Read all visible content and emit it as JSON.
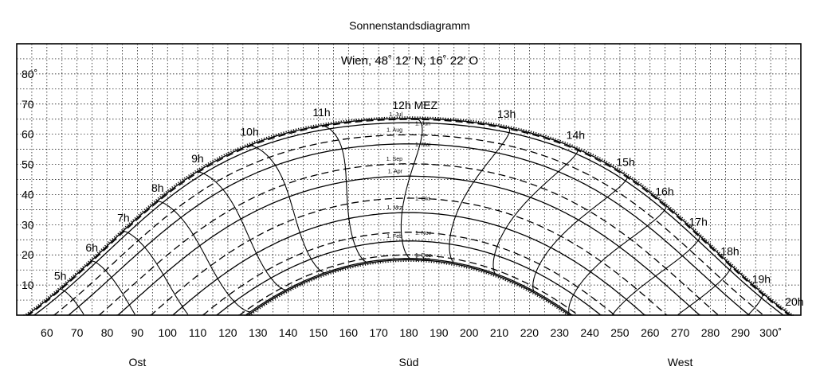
{
  "chart_data": {
    "type": "line",
    "title": "Sonnenstandsdiagramm",
    "subtitle": "Wien, 48˚ 12′ N, 16˚ 22′ O",
    "location": {
      "latitude_deg": 48.2,
      "longitude_deg": 16.367
    },
    "xlim": [
      50,
      310
    ],
    "ylim": [
      0,
      90
    ],
    "x_ticks": [
      {
        "v": 60,
        "t": "60"
      },
      {
        "v": 70,
        "t": "70"
      },
      {
        "v": 80,
        "t": "80"
      },
      {
        "v": 90,
        "t": "90"
      },
      {
        "v": 100,
        "t": "100"
      },
      {
        "v": 110,
        "t": "110"
      },
      {
        "v": 120,
        "t": "120"
      },
      {
        "v": 130,
        "t": "130"
      },
      {
        "v": 140,
        "t": "140"
      },
      {
        "v": 150,
        "t": "150"
      },
      {
        "v": 160,
        "t": "160"
      },
      {
        "v": 170,
        "t": "170"
      },
      {
        "v": 180,
        "t": "180"
      },
      {
        "v": 190,
        "t": "190"
      },
      {
        "v": 200,
        "t": "200"
      },
      {
        "v": 210,
        "t": "210"
      },
      {
        "v": 220,
        "t": "220"
      },
      {
        "v": 230,
        "t": "230"
      },
      {
        "v": 240,
        "t": "240"
      },
      {
        "v": 250,
        "t": "250"
      },
      {
        "v": 260,
        "t": "260"
      },
      {
        "v": 270,
        "t": "270"
      },
      {
        "v": 280,
        "t": "280"
      },
      {
        "v": 290,
        "t": "290"
      },
      {
        "v": 300,
        "t": "300˚"
      }
    ],
    "y_ticks": [
      {
        "v": 10,
        "t": "10"
      },
      {
        "v": 20,
        "t": "20"
      },
      {
        "v": 30,
        "t": "30"
      },
      {
        "v": 40,
        "t": "40"
      },
      {
        "v": 50,
        "t": "50"
      },
      {
        "v": 60,
        "t": "60"
      },
      {
        "v": 70,
        "t": "70"
      },
      {
        "v": 80,
        "t": "80˚"
      }
    ],
    "directions": [
      {
        "label": "Ost",
        "azimuth": 90
      },
      {
        "label": "Süd",
        "azimuth": 180
      },
      {
        "label": "West",
        "azimuth": 270
      }
    ],
    "grid": true,
    "series_note_day_paths": [
      {
        "label": "1. Jan",
        "declination": -23.0,
        "style": "solid"
      },
      {
        "label": "1. Feb",
        "declination": -17.2,
        "style": "solid"
      },
      {
        "label": "1. Mrz",
        "declination": -7.8,
        "style": "solid"
      },
      {
        "label": "1. Apr",
        "declination": 4.3,
        "style": "solid"
      },
      {
        "label": "1. Mai",
        "declination": 15.0,
        "style": "solid"
      },
      {
        "label": "1. Jun",
        "declination": 22.0,
        "style": "solid"
      },
      {
        "label": "1. Jul",
        "declination": 23.1,
        "style": "dash"
      },
      {
        "label": "1. Aug",
        "declination": 18.0,
        "style": "dash"
      },
      {
        "label": "1. Sep",
        "declination": 8.4,
        "style": "dash"
      },
      {
        "label": "1. Okt",
        "declination": -3.0,
        "style": "dash"
      },
      {
        "label": "1. Nov",
        "declination": -14.3,
        "style": "dash"
      },
      {
        "label": "1. Dez",
        "declination": -21.8,
        "style": "dash"
      }
    ],
    "solstice_limits": {
      "summer_declination": 23.44,
      "winter_declination": -23.44
    },
    "hour_lines": [
      {
        "label": "5h",
        "hour": 5
      },
      {
        "label": "6h",
        "hour": 6
      },
      {
        "label": "7h",
        "hour": 7
      },
      {
        "label": "8h",
        "hour": 8
      },
      {
        "label": "9h",
        "hour": 9
      },
      {
        "label": "10h",
        "hour": 10
      },
      {
        "label": "11h",
        "hour": 11
      },
      {
        "label": "12h MEZ",
        "hour": 12
      },
      {
        "label": "13h",
        "hour": 13
      },
      {
        "label": "14h",
        "hour": 14
      },
      {
        "label": "15h",
        "hour": 15
      },
      {
        "label": "16h",
        "hour": 16
      },
      {
        "label": "17h",
        "hour": 17
      },
      {
        "label": "18h",
        "hour": 18
      },
      {
        "label": "19h",
        "hour": 19
      },
      {
        "label": "20h",
        "hour": 20
      }
    ]
  }
}
